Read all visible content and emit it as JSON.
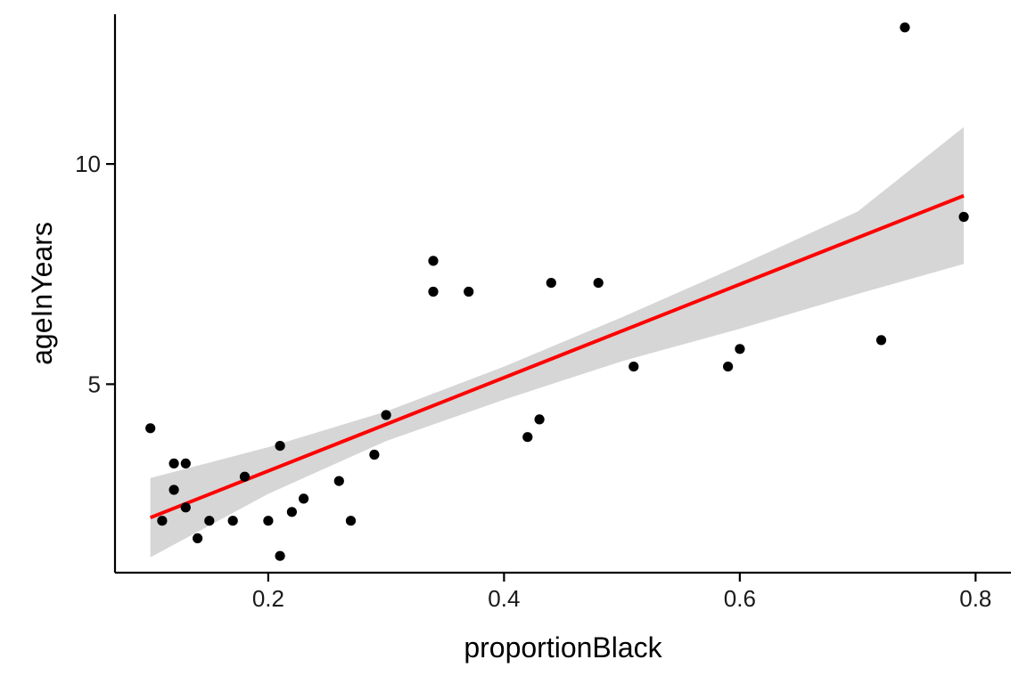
{
  "chart_data": {
    "type": "scatter",
    "title": "",
    "xlabel": "proportionBlack",
    "ylabel": "ageInYears",
    "xlim": [
      0.07,
      0.83
    ],
    "ylim": [
      0.72,
      13.4
    ],
    "x_ticks": [
      {
        "value": 0.2,
        "label": "0.2"
      },
      {
        "value": 0.4,
        "label": "0.4"
      },
      {
        "value": 0.6,
        "label": "0.6"
      },
      {
        "value": 0.8,
        "label": "0.8"
      }
    ],
    "y_ticks": [
      {
        "value": 5,
        "label": "5"
      },
      {
        "value": 10,
        "label": "10"
      }
    ],
    "grid": false,
    "legend": "none",
    "point_color": "#000000",
    "fit_color": "#ff0000",
    "band_color": "#d6d6d6",
    "points": [
      {
        "x": 0.1,
        "y": 4.0
      },
      {
        "x": 0.11,
        "y": 1.9
      },
      {
        "x": 0.12,
        "y": 3.2
      },
      {
        "x": 0.12,
        "y": 2.6
      },
      {
        "x": 0.13,
        "y": 3.2
      },
      {
        "x": 0.13,
        "y": 2.2
      },
      {
        "x": 0.14,
        "y": 1.5
      },
      {
        "x": 0.15,
        "y": 1.9
      },
      {
        "x": 0.17,
        "y": 1.9
      },
      {
        "x": 0.18,
        "y": 2.9
      },
      {
        "x": 0.2,
        "y": 1.9
      },
      {
        "x": 0.21,
        "y": 3.6
      },
      {
        "x": 0.21,
        "y": 1.1
      },
      {
        "x": 0.22,
        "y": 2.1
      },
      {
        "x": 0.23,
        "y": 2.4
      },
      {
        "x": 0.26,
        "y": 2.8
      },
      {
        "x": 0.27,
        "y": 1.9
      },
      {
        "x": 0.29,
        "y": 3.4
      },
      {
        "x": 0.3,
        "y": 4.3
      },
      {
        "x": 0.34,
        "y": 7.8
      },
      {
        "x": 0.34,
        "y": 7.1
      },
      {
        "x": 0.37,
        "y": 7.1
      },
      {
        "x": 0.42,
        "y": 3.8
      },
      {
        "x": 0.43,
        "y": 4.2
      },
      {
        "x": 0.44,
        "y": 7.3
      },
      {
        "x": 0.48,
        "y": 7.3
      },
      {
        "x": 0.51,
        "y": 5.4
      },
      {
        "x": 0.59,
        "y": 5.4
      },
      {
        "x": 0.6,
        "y": 5.8
      },
      {
        "x": 0.72,
        "y": 6.0
      },
      {
        "x": 0.74,
        "y": 13.1
      },
      {
        "x": 0.79,
        "y": 8.8
      }
    ],
    "fit": {
      "x": [
        0.1,
        0.79
      ],
      "y": [
        1.97,
        9.28
      ]
    },
    "confidence_band": {
      "x": [
        0.1,
        0.2,
        0.3,
        0.4,
        0.5,
        0.6,
        0.7,
        0.79
      ],
      "lower": [
        1.07,
        2.51,
        3.71,
        4.65,
        5.52,
        6.26,
        7.05,
        7.73
      ],
      "upper": [
        2.87,
        3.57,
        4.38,
        5.4,
        6.52,
        7.7,
        8.92,
        10.84
      ]
    }
  }
}
